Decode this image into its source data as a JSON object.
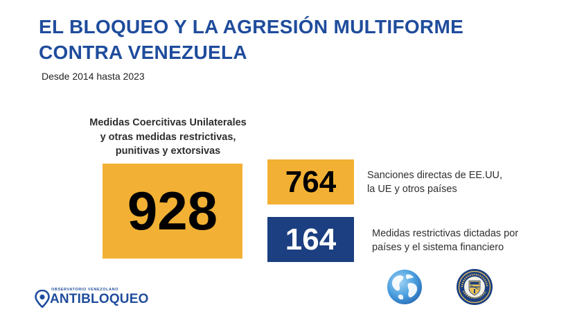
{
  "header": {
    "title_line1": "EL BLOQUEO Y LA AGRESIÓN MULTIFORME",
    "title_line2": "CONTRA VENEZUELA",
    "subtitle": "Desde 2014 hasta 2023"
  },
  "main_stat": {
    "label_line1": "Medidas Coercitivas Unilaterales",
    "label_line2": "y otras medidas restrictivas,",
    "label_line3": "punitivas y extorsivas",
    "value": "928",
    "color": "#f2b134"
  },
  "stats": [
    {
      "value": "764",
      "desc_line1": "Sanciones directas de EE.UU,",
      "desc_line2": "la UE y otros países",
      "color": "#f2b134"
    },
    {
      "value": "164",
      "desc_line1": "Medidas restrictivas dictadas por",
      "desc_line2": "países y el sistema financiero",
      "color": "#1b3f80"
    }
  ],
  "icons": {
    "globe": "globe-icon",
    "seal": "treasury-seal-icon",
    "pin": "map-pin-icon"
  },
  "logo": {
    "small_text": "OBSERVATORIO VENEZOLANO",
    "main_text": "ANTIBLOQUEO"
  },
  "colors": {
    "title": "#1f4c9c",
    "yellow": "#f2b134",
    "navy": "#1b3f80"
  }
}
